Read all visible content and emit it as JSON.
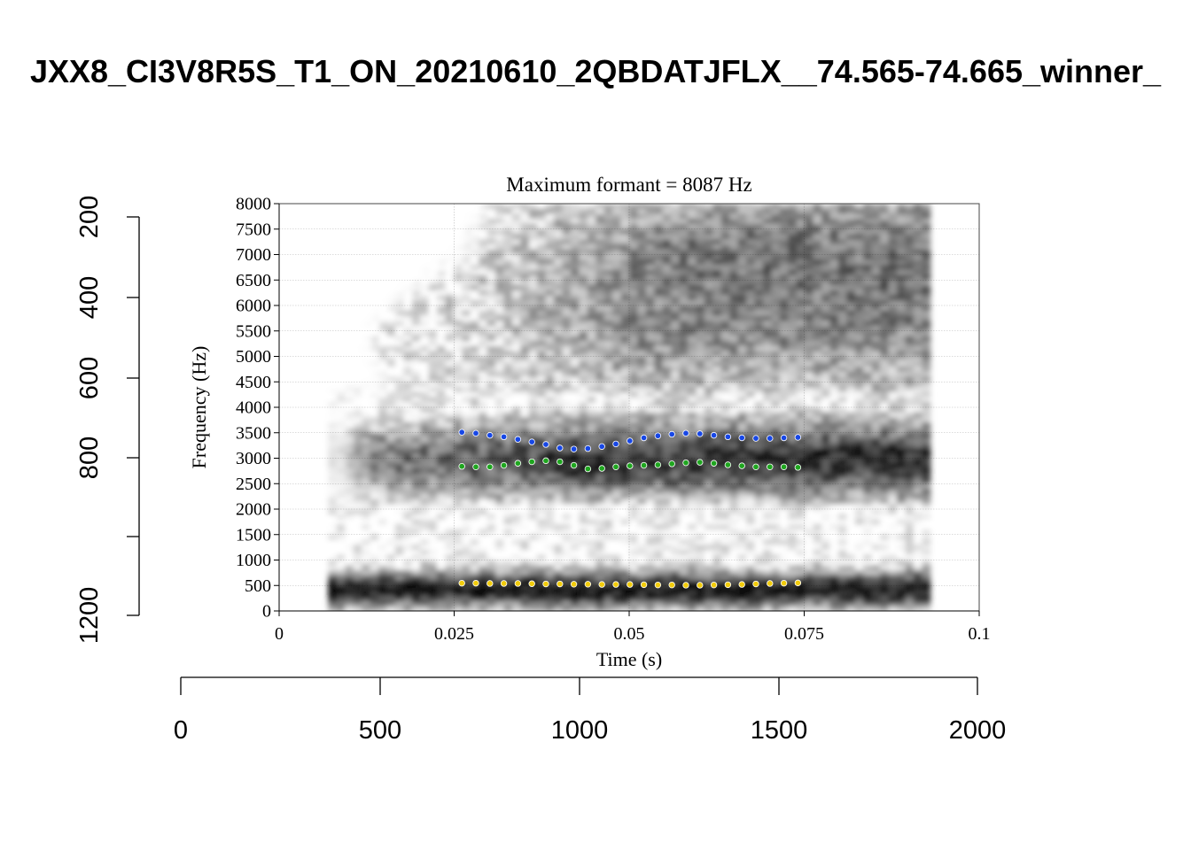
{
  "title": "JXX8_CI3V8R5S_T1_ON_20210610_2QBDATJFLX__74.565-74.665_winner_",
  "chart_data": {
    "type": "scatter",
    "title": "Maximum formant  =  8087 Hz",
    "xlabel": "Time (s)",
    "ylabel": "Frequency (Hz)",
    "xlim": [
      0,
      0.1
    ],
    "ylim": [
      0,
      8000
    ],
    "x_ticks": [
      "0",
      "0.025",
      "0.05",
      "0.075",
      "0.1"
    ],
    "y_ticks": [
      "0",
      "500",
      "1000",
      "1500",
      "2000",
      "2500",
      "3000",
      "3500",
      "4000",
      "4500",
      "5000",
      "5500",
      "6000",
      "6500",
      "7000",
      "7500",
      "8000"
    ],
    "grid": true,
    "spectrogram_range_s": [
      0.007,
      0.093
    ],
    "series": [
      {
        "color": "#f2cc0c",
        "x": [
          0.0261,
          0.0281,
          0.0301,
          0.0321,
          0.0341,
          0.0361,
          0.0381,
          0.0401,
          0.0421,
          0.0441,
          0.0461,
          0.0481,
          0.0501,
          0.0521,
          0.0541,
          0.0561,
          0.0581,
          0.0601,
          0.0621,
          0.0641,
          0.0661,
          0.0681,
          0.0701,
          0.0721,
          0.0741
        ],
        "y": [
          545,
          545,
          540,
          540,
          540,
          535,
          530,
          530,
          525,
          525,
          520,
          520,
          520,
          515,
          510,
          510,
          505,
          505,
          510,
          515,
          520,
          530,
          540,
          545,
          550
        ]
      },
      {
        "color": "#1fa61f",
        "x": [
          0.0261,
          0.0281,
          0.0301,
          0.0321,
          0.0341,
          0.0361,
          0.0381,
          0.0401,
          0.0421,
          0.0441,
          0.0461,
          0.0481,
          0.0501,
          0.0521,
          0.0541,
          0.0561,
          0.0581,
          0.0601,
          0.0621,
          0.0641,
          0.0661,
          0.0681,
          0.0701,
          0.0721,
          0.0741
        ],
        "y": [
          2840,
          2830,
          2830,
          2860,
          2900,
          2930,
          2950,
          2930,
          2860,
          2790,
          2800,
          2830,
          2850,
          2860,
          2870,
          2890,
          2910,
          2920,
          2900,
          2870,
          2850,
          2830,
          2830,
          2830,
          2820
        ]
      },
      {
        "color": "#1747e6",
        "x": [
          0.0261,
          0.0281,
          0.0301,
          0.0321,
          0.0341,
          0.0361,
          0.0381,
          0.0401,
          0.0421,
          0.0441,
          0.0461,
          0.0481,
          0.0501,
          0.0521,
          0.0541,
          0.0561,
          0.0581,
          0.0601,
          0.0621,
          0.0641,
          0.0661,
          0.0681,
          0.0701,
          0.0721,
          0.0741
        ],
        "y": [
          3510,
          3490,
          3450,
          3420,
          3370,
          3320,
          3270,
          3200,
          3180,
          3190,
          3230,
          3280,
          3340,
          3400,
          3440,
          3470,
          3490,
          3480,
          3450,
          3420,
          3400,
          3390,
          3390,
          3400,
          3410
        ]
      }
    ]
  },
  "outer_axes": {
    "x_ticks": [
      "0",
      "500",
      "1000",
      "1500",
      "2000"
    ],
    "y_ticks": [
      "200",
      "400",
      "600",
      "800",
      "1200"
    ]
  }
}
